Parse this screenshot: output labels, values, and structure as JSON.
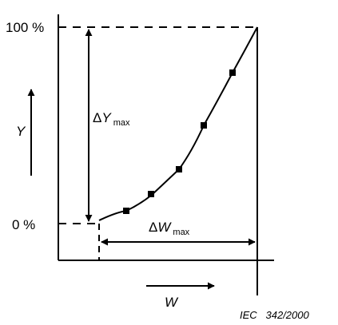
{
  "labels": {
    "y_top": "100 %",
    "y_zero": "0 %",
    "y_axis": "Y",
    "x_axis": "W",
    "delta_y": {
      "delta": "Δ",
      "var": "Y",
      "sub": "max"
    },
    "delta_w": {
      "delta": "Δ",
      "var": "W",
      "sub": "max"
    }
  },
  "caption": "IEC   342/2000",
  "colors": {
    "line": "#000000",
    "background": "#ffffff"
  }
}
